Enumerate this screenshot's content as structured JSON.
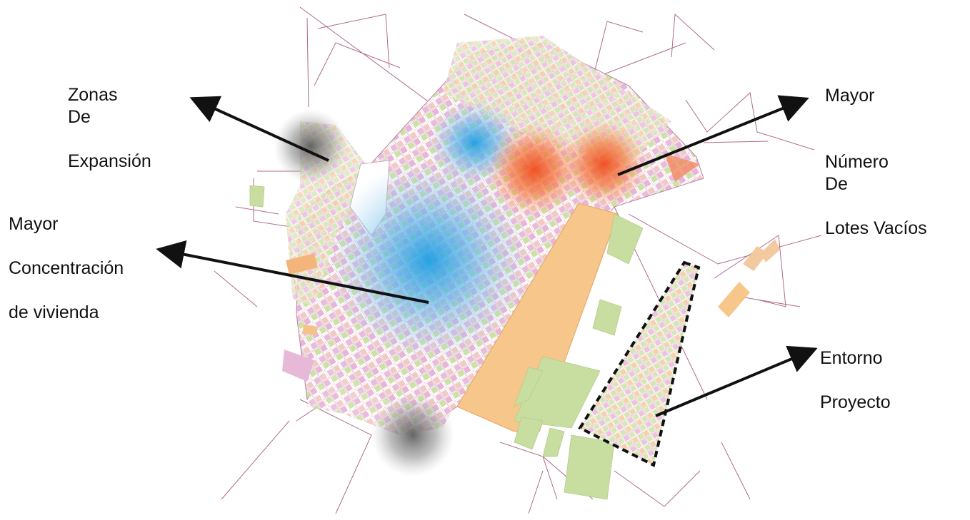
{
  "annotations": {
    "expansion": {
      "line1_a": "Zonas",
      "line1_b": "De",
      "line2": "Expansión"
    },
    "lotes": {
      "line1": "Mayor",
      "line2_a": "Número",
      "line2_b": "De",
      "line3": "Lotes Vacíos"
    },
    "vivienda": {
      "line1": "Mayor",
      "line2": "Concentración",
      "line3": "de vivienda"
    },
    "entorno": {
      "line1": "Entorno",
      "line2": "Proyecto"
    }
  },
  "legend_colors": {
    "residential": "#e8b8d8",
    "green_area": "#c8dea0",
    "commercial": "#f6c68a",
    "industrial": "#f4b57a",
    "boundary": "#8b3a62",
    "hotspot_housing": "#1e9fe3",
    "hotspot_empty_lots": "#f04a1a",
    "expansion_zone": "#555555"
  }
}
